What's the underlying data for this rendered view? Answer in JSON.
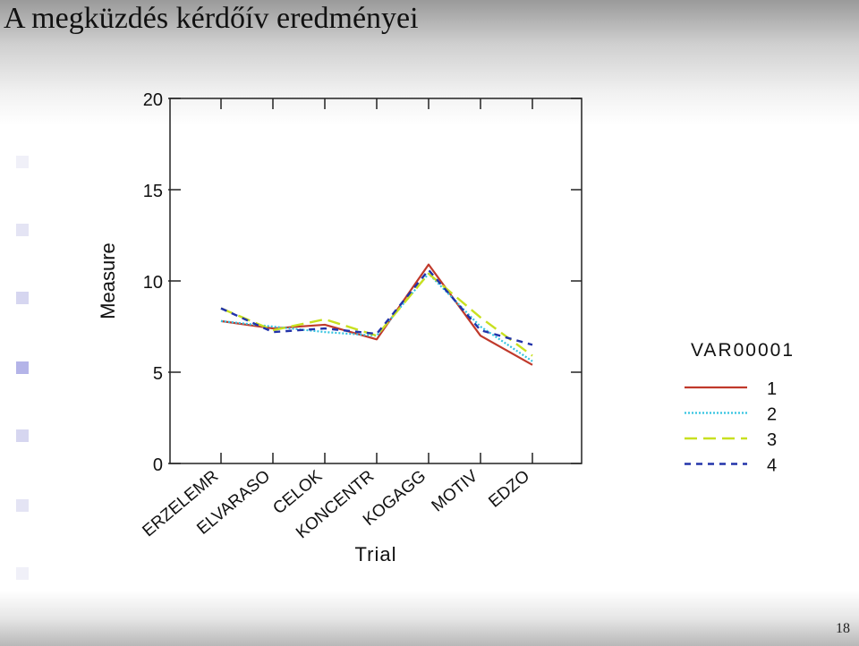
{
  "slide": {
    "title": "A megküzdés kérdőív eredményei",
    "page_number": "18"
  },
  "bullet_colors": [
    "#f0f0f8",
    "#e4e4f4",
    "#d6d6f0",
    "#b4b4e8",
    "#d6d6f0",
    "#e4e4f4",
    "#f0f0f8"
  ],
  "chart_data": {
    "type": "line",
    "xlabel": "Trial",
    "ylabel": "Measure",
    "ylim": [
      0,
      20
    ],
    "yticks": [
      0,
      5,
      10,
      15,
      20
    ],
    "categories": [
      "ERZELEMR",
      "ELVARASO",
      "CELOK",
      "KONCENTR",
      "KOGAGG",
      "MOTIV",
      "EDZO"
    ],
    "legend_title": "VAR00001",
    "legend_position": "right",
    "grid": false,
    "series": [
      {
        "name": "1",
        "color": "#c0392b",
        "style": "solid",
        "values": [
          7.8,
          7.4,
          7.6,
          6.8,
          10.9,
          7.0,
          5.4
        ]
      },
      {
        "name": "2",
        "color": "#33c3e0",
        "style": "dotted",
        "values": [
          7.8,
          7.5,
          7.2,
          7.0,
          10.4,
          7.5,
          5.6
        ]
      },
      {
        "name": "3",
        "color": "#c8e020",
        "style": "longdash",
        "values": [
          8.5,
          7.3,
          7.9,
          7.0,
          10.4,
          8.0,
          5.9
        ]
      },
      {
        "name": "4",
        "color": "#2233aa",
        "style": "shortdash",
        "values": [
          8.5,
          7.2,
          7.4,
          7.1,
          10.6,
          7.3,
          6.5
        ]
      }
    ]
  }
}
